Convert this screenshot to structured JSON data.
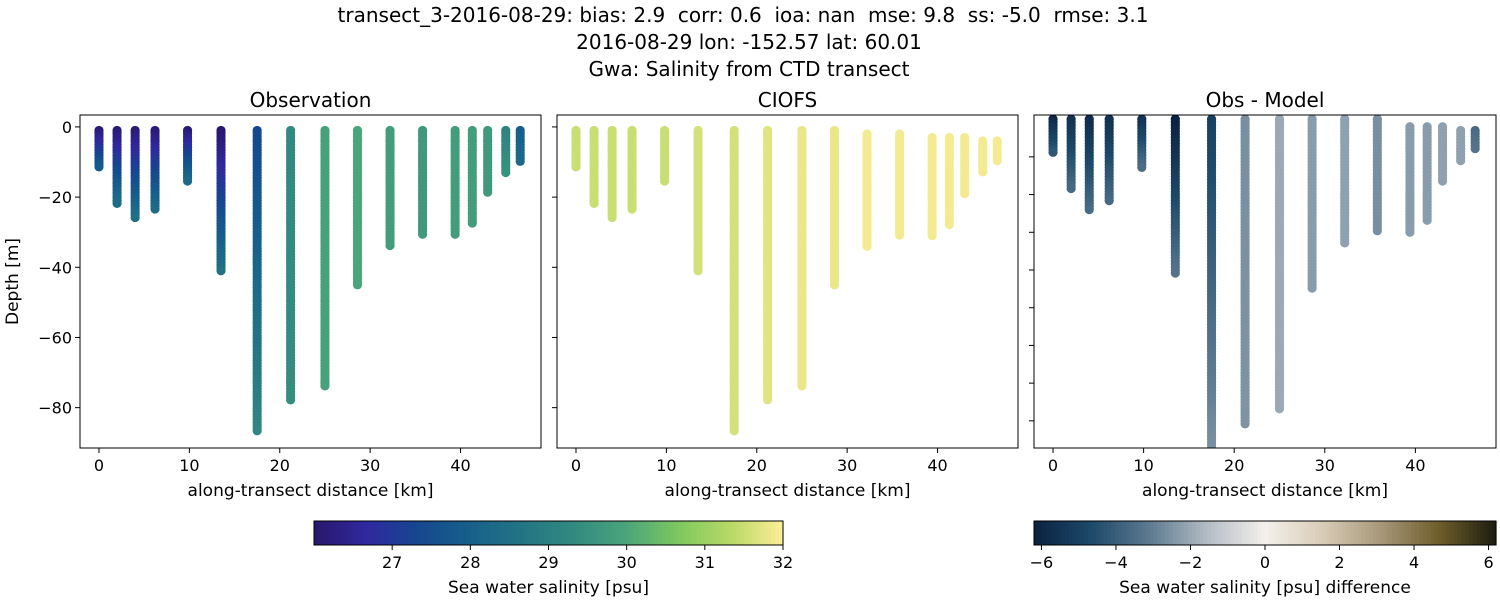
{
  "chart_data": {
    "type": "scatter",
    "title_lines": [
      "transect_3-2016-08-29: bias: 2.9  corr: 0.6  ioa: nan  mse: 9.8  ss: -5.0  rmse: 3.1",
      "2016-08-29 lon: -152.57 lat: 60.01",
      "Gwa: Salinity from CTD transect"
    ],
    "ylabel": "Depth [m]",
    "xlabel": "along-transect distance [km]",
    "xlim": [
      -2.1,
      48.9
    ],
    "xticks": [
      0,
      10,
      20,
      30,
      40
    ],
    "panels": [
      {
        "title": "Observation",
        "ylim": [
          -91.5,
          3.4
        ],
        "yticks": [
          0,
          -20,
          -40,
          -60,
          -80
        ],
        "show_yticklabels": true,
        "colormap": "haline",
        "stations": [
          {
            "x": 0,
            "top": -1,
            "bottom": -12,
            "v_top": 26.1,
            "v_bottom": 27.9
          },
          {
            "x": 2,
            "top": -1,
            "bottom": -22,
            "v_top": 26.1,
            "v_bottom": 28.4
          },
          {
            "x": 4,
            "top": -1,
            "bottom": -26,
            "v_top": 26.1,
            "v_bottom": 28.5
          },
          {
            "x": 6.2,
            "top": -1,
            "bottom": -24,
            "v_top": 26.1,
            "v_bottom": 28.4
          },
          {
            "x": 9.8,
            "top": -1,
            "bottom": -16,
            "v_top": 26.1,
            "v_bottom": 28.4
          },
          {
            "x": 13.5,
            "top": -1,
            "bottom": -41,
            "v_top": 26.0,
            "v_bottom": 28.5
          },
          {
            "x": 17.5,
            "top": -1,
            "bottom": -87,
            "v_top": 27.3,
            "v_bottom": 29.2
          },
          {
            "x": 21.2,
            "top": -1,
            "bottom": -78,
            "v_top": 29.3,
            "v_bottom": 29.4
          },
          {
            "x": 25,
            "top": -1,
            "bottom": -74,
            "v_top": 29.9,
            "v_bottom": 29.9
          },
          {
            "x": 28.6,
            "top": -1,
            "bottom": -45,
            "v_top": 30.0,
            "v_bottom": 30.0
          },
          {
            "x": 32.2,
            "top": -1,
            "bottom": -34,
            "v_top": 29.8,
            "v_bottom": 29.8
          },
          {
            "x": 35.8,
            "top": -1,
            "bottom": -31,
            "v_top": 29.7,
            "v_bottom": 29.7
          },
          {
            "x": 39.4,
            "top": -1,
            "bottom": -31,
            "v_top": 29.8,
            "v_bottom": 29.8
          },
          {
            "x": 41.3,
            "top": -1,
            "bottom": -28,
            "v_top": 29.8,
            "v_bottom": 29.8
          },
          {
            "x": 43,
            "top": -1,
            "bottom": -19,
            "v_top": 29.7,
            "v_bottom": 29.7
          },
          {
            "x": 45,
            "top": -1,
            "bottom": -13,
            "v_top": 29.1,
            "v_bottom": 29.5
          },
          {
            "x": 46.6,
            "top": -1,
            "bottom": -10,
            "v_top": 27.9,
            "v_bottom": 28.3
          }
        ]
      },
      {
        "title": "CIOFS",
        "ylim": [
          -91.5,
          3.4
        ],
        "yticks": [
          0,
          -20,
          -40,
          -60,
          -80
        ],
        "show_yticklabels": false,
        "colormap": "haline",
        "stations": [
          {
            "x": 0,
            "top": -1,
            "bottom": -12,
            "v_top": 31.5,
            "v_bottom": 31.5
          },
          {
            "x": 2,
            "top": -1,
            "bottom": -22,
            "v_top": 31.5,
            "v_bottom": 31.5
          },
          {
            "x": 4,
            "top": -1,
            "bottom": -26,
            "v_top": 31.5,
            "v_bottom": 31.5
          },
          {
            "x": 6.2,
            "top": -1,
            "bottom": -24,
            "v_top": 31.5,
            "v_bottom": 31.5
          },
          {
            "x": 9.8,
            "top": -1,
            "bottom": -16,
            "v_top": 31.5,
            "v_bottom": 31.5
          },
          {
            "x": 13.5,
            "top": -1,
            "bottom": -41,
            "v_top": 31.6,
            "v_bottom": 31.6
          },
          {
            "x": 17.5,
            "top": -1,
            "bottom": -87,
            "v_top": 31.6,
            "v_bottom": 31.6
          },
          {
            "x": 21.2,
            "top": -1,
            "bottom": -78,
            "v_top": 31.7,
            "v_bottom": 31.7
          },
          {
            "x": 25,
            "top": -1,
            "bottom": -74,
            "v_top": 31.8,
            "v_bottom": 31.8
          },
          {
            "x": 28.6,
            "top": -1,
            "bottom": -45,
            "v_top": 31.8,
            "v_bottom": 31.8
          },
          {
            "x": 32.2,
            "top": -2,
            "bottom": -34,
            "v_top": 31.9,
            "v_bottom": 31.9
          },
          {
            "x": 35.8,
            "top": -2,
            "bottom": -31,
            "v_top": 31.9,
            "v_bottom": 31.9
          },
          {
            "x": 39.4,
            "top": -3,
            "bottom": -31,
            "v_top": 31.9,
            "v_bottom": 31.9
          },
          {
            "x": 41.3,
            "top": -3,
            "bottom": -28,
            "v_top": 31.9,
            "v_bottom": 31.9
          },
          {
            "x": 43,
            "top": -3,
            "bottom": -19,
            "v_top": 31.9,
            "v_bottom": 31.9
          },
          {
            "x": 45,
            "top": -4,
            "bottom": -13,
            "v_top": 31.9,
            "v_bottom": 31.9
          },
          {
            "x": 46.6,
            "top": -4,
            "bottom": -10,
            "v_top": 31.9,
            "v_bottom": 31.9
          }
        ]
      },
      {
        "title": "Obs - Model",
        "ylim": [
          -87.2,
          1.1
        ],
        "yticks": [
          -10,
          -20,
          -30,
          -40,
          -50,
          -60,
          -70,
          -80
        ],
        "show_yticklabels": false,
        "colormap": "diff",
        "stations": [
          {
            "x": 0,
            "top": 0,
            "bottom": -9,
            "v_top": -6.0,
            "v_bottom": -4.2
          },
          {
            "x": 2,
            "top": 0,
            "bottom": -19,
            "v_top": -5.6,
            "v_bottom": -3.6
          },
          {
            "x": 4,
            "top": 0,
            "bottom": -24,
            "v_top": -5.8,
            "v_bottom": -3.6
          },
          {
            "x": 6.2,
            "top": 0,
            "bottom": -22,
            "v_top": -5.6,
            "v_bottom": -3.6
          },
          {
            "x": 9.8,
            "top": 0,
            "bottom": -13,
            "v_top": -5.6,
            "v_bottom": -3.5
          },
          {
            "x": 13.5,
            "top": 0,
            "bottom": -41,
            "v_top": -6.2,
            "v_bottom": -3.3
          },
          {
            "x": 17.5,
            "top": 0,
            "bottom": -90,
            "v_top": -5.0,
            "v_bottom": -2.5
          },
          {
            "x": 21.2,
            "top": 0,
            "bottom": -81,
            "v_top": -2.6,
            "v_bottom": -2.5
          },
          {
            "x": 25,
            "top": 0,
            "bottom": -77,
            "v_top": -2.0,
            "v_bottom": -2.0
          },
          {
            "x": 28.6,
            "top": 0,
            "bottom": -45,
            "v_top": -2.3,
            "v_bottom": -2.3
          },
          {
            "x": 32.2,
            "top": 0,
            "bottom": -33,
            "v_top": -2.2,
            "v_bottom": -2.2
          },
          {
            "x": 35.8,
            "top": 0,
            "bottom": -30,
            "v_top": -2.6,
            "v_bottom": -2.6
          },
          {
            "x": 39.4,
            "top": -2,
            "bottom": -30,
            "v_top": -2.3,
            "v_bottom": -2.3
          },
          {
            "x": 41.3,
            "top": -2,
            "bottom": -27,
            "v_top": -2.3,
            "v_bottom": -2.3
          },
          {
            "x": 43,
            "top": -2,
            "bottom": -17,
            "v_top": -2.2,
            "v_bottom": -2.2
          },
          {
            "x": 45,
            "top": -3,
            "bottom": -11,
            "v_top": -2.2,
            "v_bottom": -2.2
          },
          {
            "x": 46.6,
            "top": -3,
            "bottom": -8,
            "v_top": -3.6,
            "v_bottom": -3.3
          }
        ]
      }
    ],
    "colorbars": [
      {
        "label": "Sea water salinity [psu]",
        "colormap": "haline",
        "range": [
          26.0,
          32.0
        ],
        "ticks": [
          27,
          28,
          29,
          30,
          31,
          32
        ]
      },
      {
        "label": "Sea water salinity [psu] difference",
        "colormap": "diff",
        "range": [
          -6.2,
          6.2
        ],
        "ticks": [
          -6,
          -4,
          -2,
          0,
          2,
          4,
          6
        ]
      }
    ],
    "colormaps": {
      "haline": [
        "#29186b",
        "#30289f",
        "#14488f",
        "#17608b",
        "#237584",
        "#338a80",
        "#4aa57a",
        "#7ec85f",
        "#b8d966",
        "#fdee99"
      ],
      "diff": [
        "#0b2140",
        "#1d4a6a",
        "#5d7a90",
        "#b3bcc4",
        "#f4f0ec",
        "#d8ccb6",
        "#a8987a",
        "#6f5e2b",
        "#1c1d0f"
      ]
    }
  }
}
